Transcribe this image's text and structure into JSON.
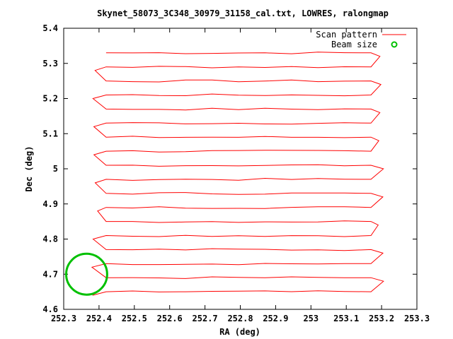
{
  "chart_data": {
    "type": "scatter",
    "title": "Skynet_58073_3C348_30979_31158_cal.txt, LOWRES, ralongmap",
    "xlabel": "RA (deg)",
    "ylabel": "Dec (deg)",
    "xlim": [
      252.3,
      253.3
    ],
    "ylim": [
      4.6,
      5.4
    ],
    "grid": false,
    "legend_position": "top-right",
    "x_ticks": [
      "252.3",
      "252.4",
      "252.5",
      "252.6",
      "252.7",
      "252.8",
      "252.9",
      "253",
      "253.1",
      "253.2",
      "253.3"
    ],
    "y_ticks": [
      "4.6",
      "4.7",
      "4.8",
      "4.9",
      "5",
      "5.1",
      "5.2",
      "5.3",
      "5.4"
    ],
    "colors": {
      "scan": "#ff0000",
      "beam": "#00c000"
    },
    "series": [
      {
        "name": "Scan pattern",
        "kind": "line",
        "scan_rows_dec": [
          5.33,
          5.29,
          5.25,
          5.21,
          5.17,
          5.13,
          5.09,
          5.05,
          5.01,
          4.97,
          4.93,
          4.89,
          4.85,
          4.81,
          4.77,
          4.73,
          4.69,
          4.65
        ],
        "ra_west": 252.42,
        "ra_east": 253.17
      },
      {
        "name": "Beam size",
        "kind": "circle",
        "center": [
          252.365,
          4.7
        ],
        "radius_deg": 0.058
      }
    ]
  }
}
